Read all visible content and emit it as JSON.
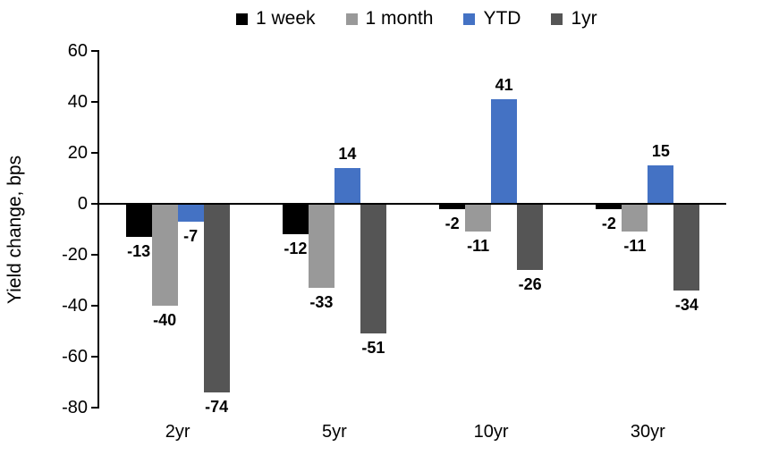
{
  "chart_data": {
    "type": "bar",
    "title": "",
    "xlabel": "",
    "ylabel": "Yield change, bps",
    "categories": [
      "2yr",
      "5yr",
      "10yr",
      "30yr"
    ],
    "series": [
      {
        "name": "1 week",
        "color": "#000000",
        "values": [
          -13,
          -12,
          -2,
          -2
        ]
      },
      {
        "name": "1 month",
        "color": "#999999",
        "values": [
          -40,
          -33,
          -11,
          -11
        ]
      },
      {
        "name": "YTD",
        "color": "#4472C4",
        "values": [
          -7,
          14,
          41,
          15
        ]
      },
      {
        "name": "1yr",
        "color": "#555555",
        "values": [
          -74,
          -51,
          -26,
          -34
        ]
      }
    ],
    "ylim": [
      -80,
      60
    ],
    "yticks": [
      60,
      40,
      20,
      0,
      -20,
      -40,
      -60,
      -80
    ],
    "grid": false,
    "legend_position": "top",
    "data_labels": true
  }
}
